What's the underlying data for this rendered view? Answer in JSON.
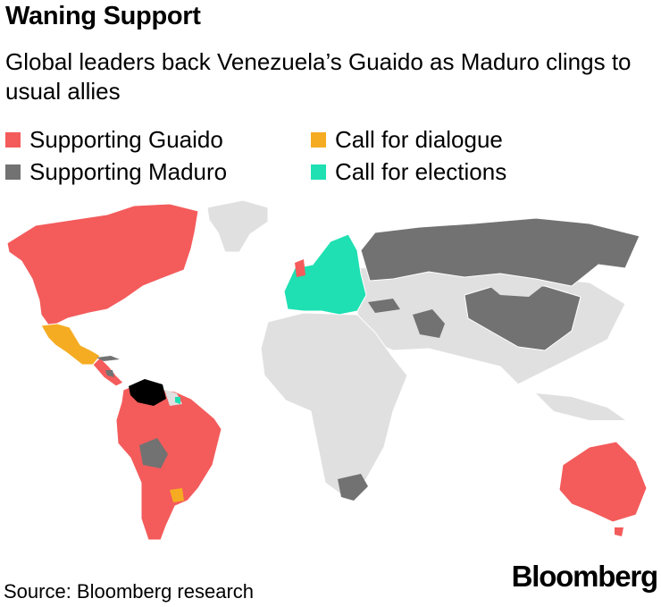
{
  "title": "Waning Support",
  "subtitle": "Global leaders back Venezuela’s Guaido as Maduro clings to usual allies",
  "legend": [
    {
      "label": "Supporting Guaido",
      "color": "#f45b5b"
    },
    {
      "label": "Supporting Maduro",
      "color": "#727272"
    },
    {
      "label": "Call for dialogue",
      "color": "#f5ac22"
    },
    {
      "label": "Call for elections",
      "color": "#1fe0b2"
    }
  ],
  "colors": {
    "neutral": "#e0e0e0",
    "venezuela": "#000000"
  },
  "source": "Source: Bloomberg research",
  "brand": "Bloomberg"
}
